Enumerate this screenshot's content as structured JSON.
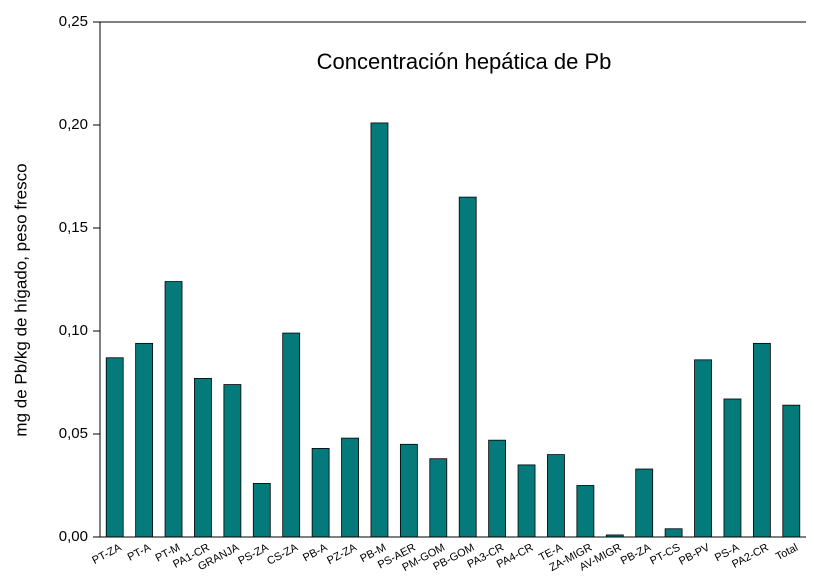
{
  "chart_data": {
    "type": "bar",
    "title": "Concentración hepática de Pb",
    "y_label": "mg de Pb/kg de hígado, peso fresco",
    "categories": [
      "PT-ZA",
      "PT-A",
      "PT-M",
      "PA1-CR",
      "GRANJA",
      "PS-ZA",
      "CS-ZA",
      "PB-A",
      "PZ-ZA",
      "PB-M",
      "PS-AER",
      "PM-GOM",
      "PB-GOM",
      "PA3-CR",
      "PA4-CR",
      "TE-A",
      "ZA-MIGR",
      "AV-MIGR",
      "PB-ZA",
      "PT-CS",
      "PB-PV",
      "PS-A",
      "PA2-CR",
      "Total"
    ],
    "values": [
      0.087,
      0.094,
      0.124,
      0.077,
      0.074,
      0.026,
      0.099,
      0.043,
      0.048,
      0.201,
      0.045,
      0.038,
      0.165,
      0.047,
      0.035,
      0.04,
      0.025,
      0.001,
      0.033,
      0.004,
      0.086,
      0.067,
      0.094,
      0.064
    ],
    "color": "#047b7a",
    "ylim": [
      0,
      0.25
    ],
    "yticks": [
      {
        "value": 0,
        "label": "0,00"
      },
      {
        "value": 0.05,
        "label": "0,05"
      },
      {
        "value": 0.1,
        "label": "0,10"
      },
      {
        "value": 0.15,
        "label": "0,15"
      },
      {
        "value": 0.2,
        "label": "0,20"
      },
      {
        "value": 0.25,
        "label": "0,25"
      }
    ],
    "grid": false
  }
}
